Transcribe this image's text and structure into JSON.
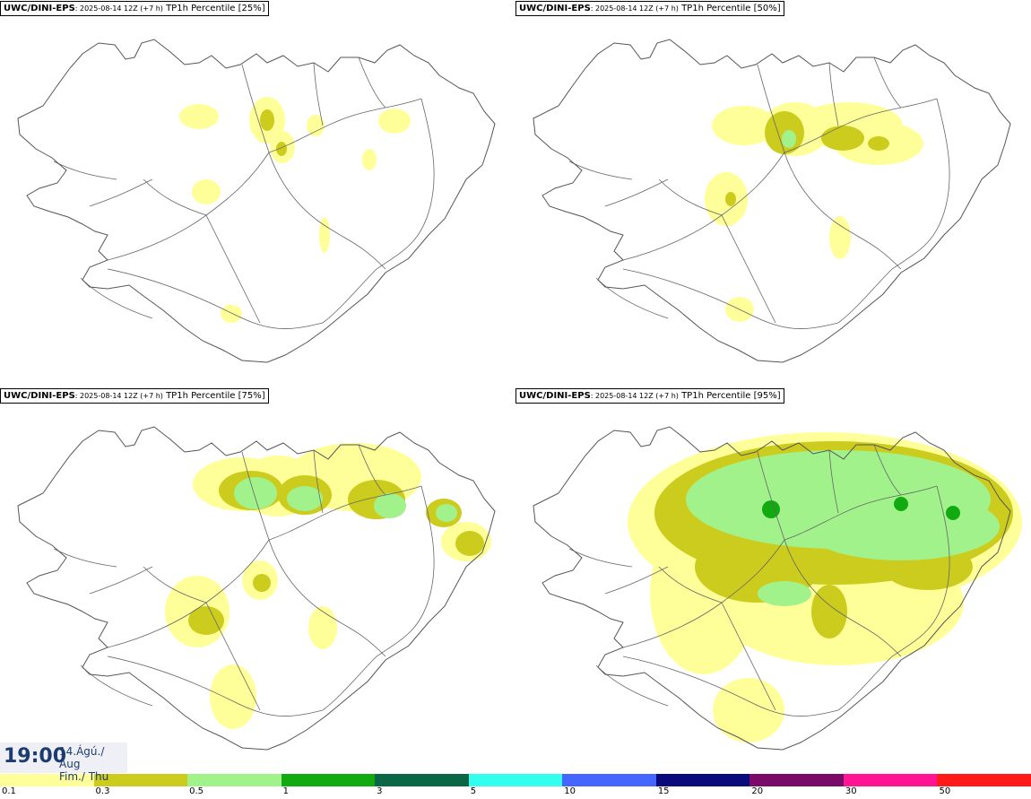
{
  "panels": [
    {
      "model": "UWC/DINI-EPS",
      "run": ": 2025-08-14 12Z (+7 h)",
      "product": "TP1h Percentile [25%]",
      "level": 1
    },
    {
      "model": "UWC/DINI-EPS",
      "run": ": 2025-08-14 12Z (+7 h)",
      "product": "TP1h Percentile [50%]",
      "level": 2
    },
    {
      "model": "UWC/DINI-EPS",
      "run": ": 2025-08-14 12Z (+7 h)",
      "product": "TP1h Percentile [75%]",
      "level": 3
    },
    {
      "model": "UWC/DINI-EPS",
      "run": ": 2025-08-14 12Z (+7 h)",
      "product": "TP1h Percentile [95%]",
      "level": 4
    }
  ],
  "valid_time": {
    "clock": "19:00",
    "date_line1": "14.Ágú./ Aug",
    "date_line2": "Fim./ Thu"
  },
  "legend": {
    "colors": [
      "#ffff99",
      "#cccc1f",
      "#a2f28c",
      "#11aa11",
      "#0a6644",
      "#33ffee",
      "#4466ff",
      "#0a0a7a",
      "#7a0a6a",
      "#ff1493",
      "#ff1a1a"
    ],
    "labels": [
      "0.1",
      "0.3",
      "0.5",
      "1",
      "3",
      "5",
      "10",
      "15",
      "20",
      "30",
      "50"
    ]
  },
  "colors": {
    "coast": "#555555",
    "roads": "#666666",
    "text": "#1c3b70"
  }
}
